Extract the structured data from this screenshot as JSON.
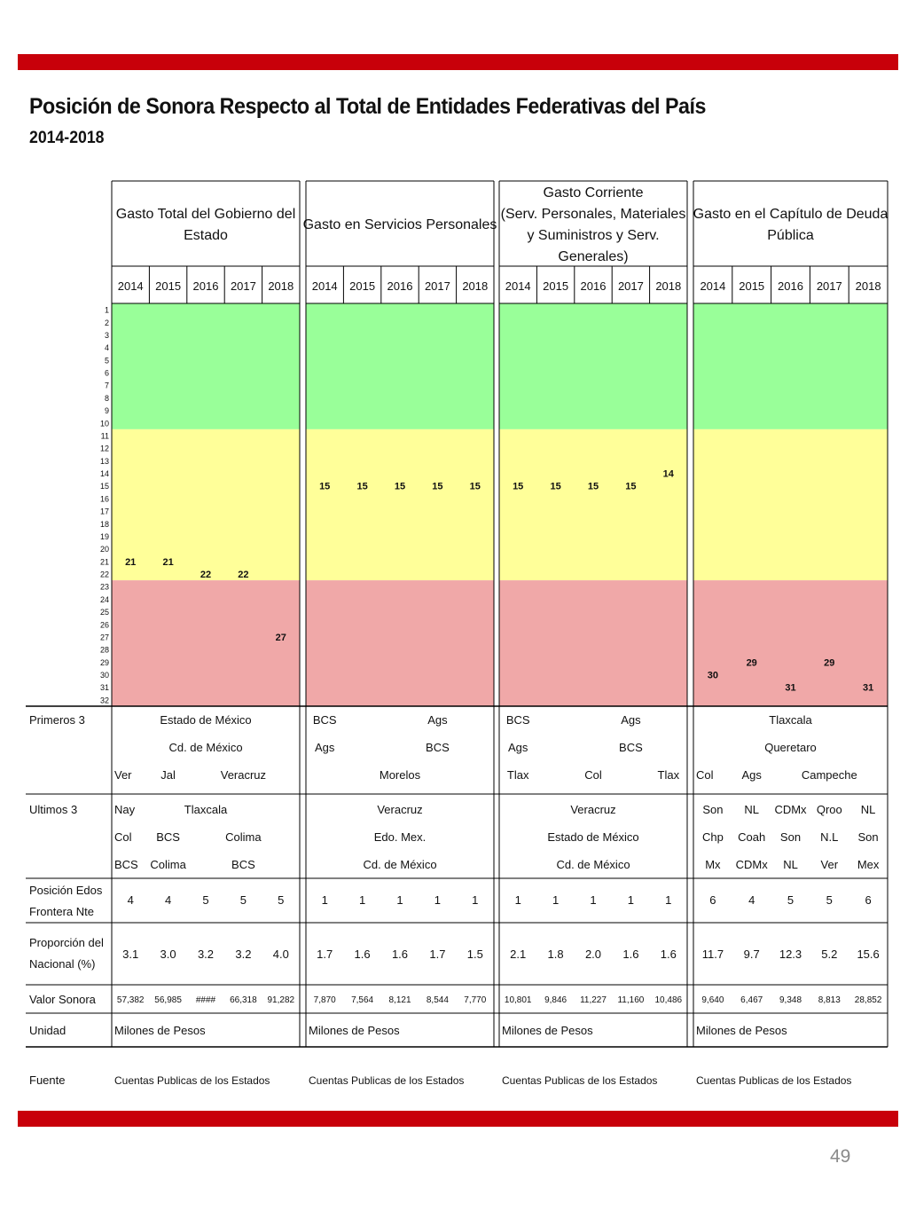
{
  "title": "Posición de Sonora Respecto al Total de Entidades Federativas del País",
  "subtitle": "2014-2018",
  "page_number": "49",
  "colors": {
    "accent_bar": "#c8000a",
    "band_green": "#99ff99",
    "band_yellow": "#ffff99",
    "band_red": "#f0a8a8"
  },
  "chart_data": {
    "type": "table",
    "ranks_axis": [
      "1",
      "2",
      "3",
      "4",
      "5",
      "6",
      "7",
      "8",
      "9",
      "10",
      "11",
      "12",
      "13",
      "14",
      "15",
      "16",
      "17",
      "18",
      "19",
      "20",
      "21",
      "22",
      "23",
      "24",
      "25",
      "26",
      "27",
      "28",
      "29",
      "30",
      "31",
      "32"
    ],
    "ylim": [
      1,
      32
    ],
    "bands": [
      {
        "from": 1,
        "to": 10,
        "color": "#99ff99"
      },
      {
        "from": 11,
        "to": 22,
        "color": "#ffff99"
      },
      {
        "from": 23,
        "to": 32,
        "color": "#f0a8a8"
      }
    ],
    "years": [
      "2014",
      "2015",
      "2016",
      "2017",
      "2018"
    ],
    "sections": [
      {
        "header": [
          "Gasto Total del Gobierno del",
          "Estado"
        ],
        "values": [
          21,
          21,
          22,
          22,
          27
        ],
        "primeros3": [
          [
            {
              "t": "Estado de México",
              "p": "center"
            }
          ],
          [
            {
              "t": "Cd. de México",
              "p": "center"
            }
          ],
          [
            {
              "t": "Ver",
              "p": "left"
            },
            {
              "t": "Jal",
              "p": "c1"
            },
            {
              "t": "Veracruz",
              "p": "c3"
            }
          ]
        ],
        "ultimos3": [
          [
            {
              "t": "Nay",
              "p": "left"
            },
            {
              "t": "Tlaxcala",
              "p": "center"
            }
          ],
          [
            {
              "t": "Col",
              "p": "left"
            },
            {
              "t": "BCS",
              "p": "c1"
            },
            {
              "t": "Colima",
              "p": "c3"
            }
          ],
          [
            {
              "t": "BCS",
              "p": "left"
            },
            {
              "t": "Colima",
              "p": "c1"
            },
            {
              "t": "BCS",
              "p": "c3"
            }
          ]
        ],
        "frontera": [
          "4",
          "4",
          "5",
          "5",
          "5"
        ],
        "proporcion": [
          "3.1",
          "3.0",
          "3.2",
          "3.2",
          "4.0"
        ],
        "valor": [
          "57,382",
          "56,985",
          "####",
          "66,318",
          "91,282"
        ],
        "unidad": "Milones de Pesos",
        "fuente": "Cuentas Publicas de los Estados"
      },
      {
        "header": [
          "Gasto en Servicios Personales"
        ],
        "values": [
          15,
          15,
          15,
          15,
          15
        ],
        "primeros3": [
          [
            {
              "t": "BCS",
              "p": "c0"
            },
            {
              "t": "Ags",
              "p": "c3"
            }
          ],
          [
            {
              "t": "Ags",
              "p": "c0"
            },
            {
              "t": "BCS",
              "p": "c3"
            }
          ],
          [
            {
              "t": "Morelos",
              "p": "center"
            }
          ]
        ],
        "ultimos3": [
          [
            {
              "t": "Veracruz",
              "p": "center"
            }
          ],
          [
            {
              "t": "Edo. Mex.",
              "p": "center"
            }
          ],
          [
            {
              "t": "Cd. de México",
              "p": "center"
            }
          ]
        ],
        "frontera": [
          "1",
          "1",
          "1",
          "1",
          "1"
        ],
        "proporcion": [
          "1.7",
          "1.6",
          "1.6",
          "1.7",
          "1.5"
        ],
        "valor": [
          "7,870",
          "7,564",
          "8,121",
          "8,544",
          "7,770"
        ],
        "unidad": "Milones de Pesos",
        "fuente": "Cuentas Publicas de los Estados"
      },
      {
        "header": [
          "Gasto Corriente",
          "(Serv. Personales, Materiales",
          "y Suministros y Serv.",
          "Generales)"
        ],
        "values": [
          15,
          15,
          15,
          15,
          14
        ],
        "primeros3": [
          [
            {
              "t": "BCS",
              "p": "c0"
            },
            {
              "t": "Ags",
              "p": "c3"
            }
          ],
          [
            {
              "t": "Ags",
              "p": "c0"
            },
            {
              "t": "BCS",
              "p": "c3"
            }
          ],
          [
            {
              "t": "Tlax",
              "p": "c0"
            },
            {
              "t": "Col",
              "p": "c2"
            },
            {
              "t": "Tlax",
              "p": "c4"
            }
          ]
        ],
        "ultimos3": [
          [
            {
              "t": "Veracruz",
              "p": "center"
            }
          ],
          [
            {
              "t": "Estado de México",
              "p": "center"
            }
          ],
          [
            {
              "t": "Cd. de México",
              "p": "center"
            }
          ]
        ],
        "frontera": [
          "1",
          "1",
          "1",
          "1",
          "1"
        ],
        "proporcion": [
          "2.1",
          "1.8",
          "2.0",
          "1.6",
          "1.6"
        ],
        "valor": [
          "10,801",
          "9,846",
          "11,227",
          "11,160",
          "10,486"
        ],
        "unidad": "Milones de Pesos",
        "fuente": "Cuentas Publicas de los Estados"
      },
      {
        "header": [
          "Gasto en el Capítulo de Deuda",
          "Pública"
        ],
        "values": [
          30,
          29,
          31,
          29,
          31
        ],
        "primeros3": [
          [
            {
              "t": "Tlaxcala",
              "p": "center"
            }
          ],
          [
            {
              "t": "Queretaro",
              "p": "center"
            }
          ],
          [
            {
              "t": "Col",
              "p": "left"
            },
            {
              "t": "Ags",
              "p": "c1"
            },
            {
              "t": "Campeche",
              "p": "c3"
            }
          ]
        ],
        "ultimos3": [
          [
            {
              "t": "Son",
              "p": "c0"
            },
            {
              "t": "NL",
              "p": "c1"
            },
            {
              "t": "CDMx",
              "p": "c2"
            },
            {
              "t": "Qroo",
              "p": "c3"
            },
            {
              "t": "NL",
              "p": "c4"
            }
          ],
          [
            {
              "t": "Chp",
              "p": "c0"
            },
            {
              "t": "Coah",
              "p": "c1"
            },
            {
              "t": "Son",
              "p": "c2"
            },
            {
              "t": "N.L",
              "p": "c3"
            },
            {
              "t": "Son",
              "p": "c4"
            }
          ],
          [
            {
              "t": "Mx",
              "p": "c0"
            },
            {
              "t": "CDMx",
              "p": "c1"
            },
            {
              "t": "NL",
              "p": "c2"
            },
            {
              "t": "Ver",
              "p": "c3"
            },
            {
              "t": "Mex",
              "p": "c4"
            }
          ]
        ],
        "frontera": [
          "6",
          "4",
          "5",
          "5",
          "6"
        ],
        "proporcion": [
          "11.7",
          "9.7",
          "12.3",
          "5.2",
          "15.6"
        ],
        "valor": [
          "9,640",
          "6,467",
          "9,348",
          "8,813",
          "28,852"
        ],
        "unidad": "Milones de Pesos",
        "fuente": "Cuentas Publicas de los Estados"
      }
    ],
    "row_labels": {
      "primeros": "Primeros 3",
      "ultimos": "Ultimos 3",
      "frontera": [
        "Posición Edos",
        "Frontera Nte"
      ],
      "proporcion": [
        "Proporción del",
        "Nacional (%)"
      ],
      "valor": "Valor Sonora",
      "unidad": "Unidad",
      "fuente": "Fuente"
    }
  }
}
